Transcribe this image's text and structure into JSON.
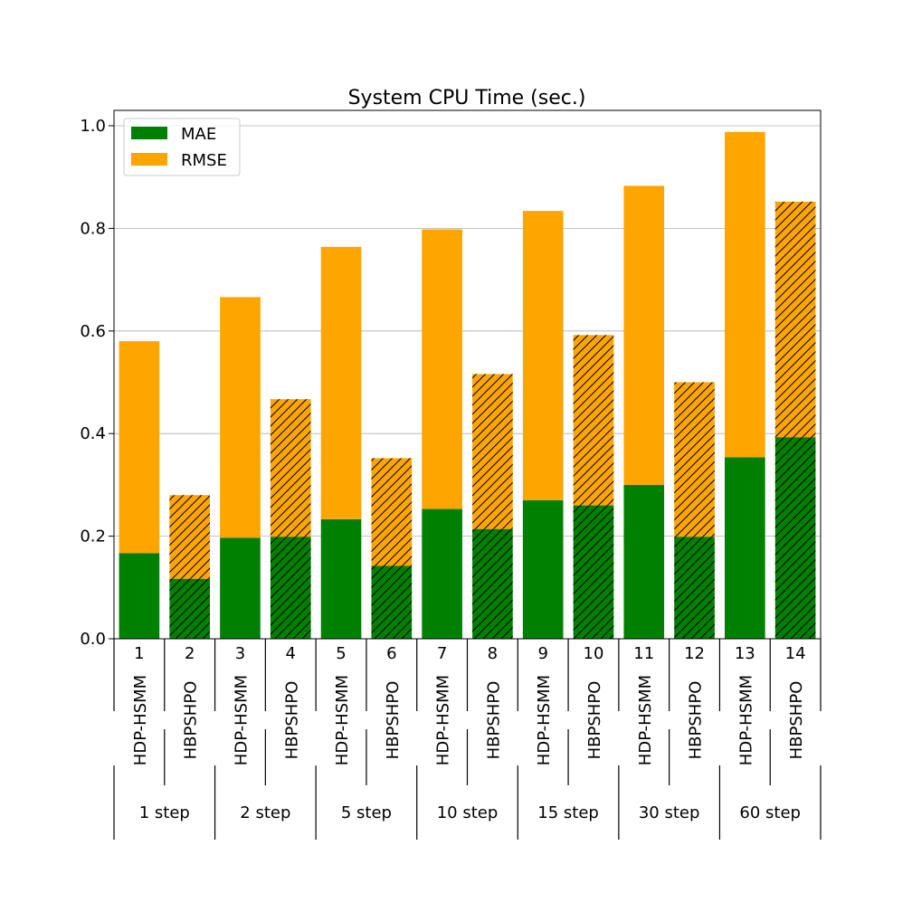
{
  "chart_data": {
    "type": "bar",
    "stacked": true,
    "title": "System CPU Time (sec.)",
    "xlabel": "",
    "ylabel": "",
    "ylim": [
      0,
      1.03
    ],
    "yticks": [
      "0.0",
      "0.2",
      "0.4",
      "0.6",
      "0.8",
      "1.0"
    ],
    "grid": "horizontal",
    "legend_position": "top-left",
    "categories": [
      "1",
      "2",
      "3",
      "4",
      "5",
      "6",
      "7",
      "8",
      "9",
      "10",
      "11",
      "12",
      "13",
      "14"
    ],
    "methods": [
      "HDP-HSMM",
      "HBPSHPO",
      "HDP-HSMM",
      "HBPSHPO",
      "HDP-HSMM",
      "HBPSHPO",
      "HDP-HSMM",
      "HBPSHPO",
      "HDP-HSMM",
      "HBPSHPO",
      "HDP-HSMM",
      "HBPSHPO",
      "HDP-HSMM",
      "HBPSHPO"
    ],
    "groups": [
      "1 step",
      "2 step",
      "5 step",
      "10 step",
      "15 step",
      "30 step",
      "60 step"
    ],
    "hatched_method": "HBPSHPO",
    "series": [
      {
        "name": "MAE",
        "color": "#008000",
        "values": [
          0.167,
          0.117,
          0.197,
          0.199,
          0.233,
          0.142,
          0.253,
          0.214,
          0.27,
          0.26,
          0.3,
          0.199,
          0.354,
          0.393
        ]
      },
      {
        "name": "RMSE",
        "color": "#ffa500",
        "values": [
          0.413,
          0.163,
          0.469,
          0.268,
          0.531,
          0.21,
          0.545,
          0.302,
          0.564,
          0.332,
          0.583,
          0.301,
          0.634,
          0.459
        ]
      }
    ]
  }
}
